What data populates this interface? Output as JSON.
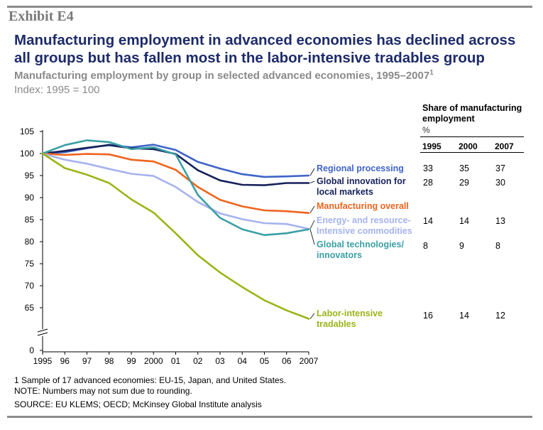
{
  "exhibit_label": "Exhibit E4",
  "chart_data": {
    "type": "line",
    "title": "Manufacturing employment in advanced economies has declined across all groups but has fallen most in the labor-intensive tradables group",
    "subtitle": "Manufacturing employment by group in selected advanced economies, 1995–2007",
    "subtitle_footnote_marker": "1",
    "ylabel": "Index: 1995 = 100",
    "x": [
      "1995",
      "96",
      "97",
      "98",
      "99",
      "2000",
      "01",
      "02",
      "03",
      "04",
      "05",
      "06",
      "2007"
    ],
    "ylim": [
      0,
      105
    ],
    "y_axis_break": [
      0,
      60
    ],
    "yticks": [
      0,
      65,
      70,
      75,
      80,
      85,
      90,
      95,
      100,
      105
    ],
    "grid": false,
    "series": [
      {
        "name": "Regional processing",
        "color": "#3f64c8",
        "values": [
          100,
          100.3,
          101.2,
          102.0,
          101.4,
          102.0,
          100.8,
          98.1,
          96.6,
          95.3,
          94.7,
          94.8,
          95.0
        ]
      },
      {
        "name": "Global innovation for local markets",
        "color": "#16215a",
        "values": [
          100,
          100.6,
          101.3,
          101.9,
          101.2,
          101.0,
          99.9,
          96.2,
          93.9,
          92.9,
          92.8,
          93.3,
          93.3
        ]
      },
      {
        "name": "Manufacturing overall",
        "color": "#f0641e",
        "values": [
          100,
          99.7,
          99.9,
          99.8,
          98.6,
          98.2,
          96.3,
          92.4,
          89.5,
          88.0,
          87.1,
          86.9,
          86.5
        ]
      },
      {
        "name": "Energy- and resource-Intensive commodities",
        "color": "#a6b3ee",
        "values": [
          100,
          98.6,
          97.7,
          96.5,
          95.4,
          94.9,
          92.4,
          89.0,
          86.4,
          85.1,
          84.2,
          84.0,
          82.9
        ]
      },
      {
        "name": "Global technologies/innovators",
        "color": "#3a9fa4",
        "values": [
          100,
          101.9,
          103.0,
          102.6,
          101.0,
          101.4,
          99.8,
          90.6,
          85.4,
          82.8,
          81.5,
          81.9,
          82.8
        ]
      },
      {
        "name": "Labor-intensive tradables",
        "color": "#9ab518",
        "values": [
          100,
          96.7,
          95.2,
          93.3,
          89.6,
          86.6,
          81.9,
          76.9,
          73.0,
          69.7,
          66.7,
          64.4,
          62.5
        ]
      }
    ]
  },
  "series_labels": [
    {
      "lines": [
        "Regional processing"
      ]
    },
    {
      "lines": [
        "Global innovation for",
        "local markets"
      ]
    },
    {
      "lines": [
        "Manufacturing overall"
      ]
    },
    {
      "lines": [
        "Energy- and resource-",
        "Intensive commodities"
      ]
    },
    {
      "lines": [
        "Global technologies/",
        "innovators"
      ]
    },
    {
      "lines": [
        "Labor-intensive",
        "tradables"
      ]
    }
  ],
  "share_table": {
    "header": [
      "Share of manufacturing",
      "employment"
    ],
    "unit": "%",
    "years": [
      "1995",
      "2000",
      "2007"
    ],
    "rows": [
      [
        "33",
        "35",
        "37"
      ],
      [
        "28",
        "29",
        "30"
      ],
      [
        "",
        "",
        ""
      ],
      [
        "14",
        "14",
        "13"
      ],
      [
        "8",
        "9",
        "8"
      ],
      [
        "16",
        "14",
        "12"
      ]
    ]
  },
  "footnotes": [
    "1  Sample of 17 advanced economies: EU-15, Japan, and United States.",
    "NOTE: Numbers may not sum due to rounding.",
    "SOURCE: EU KLEMS; OECD; McKinsey Global Institute analysis"
  ]
}
